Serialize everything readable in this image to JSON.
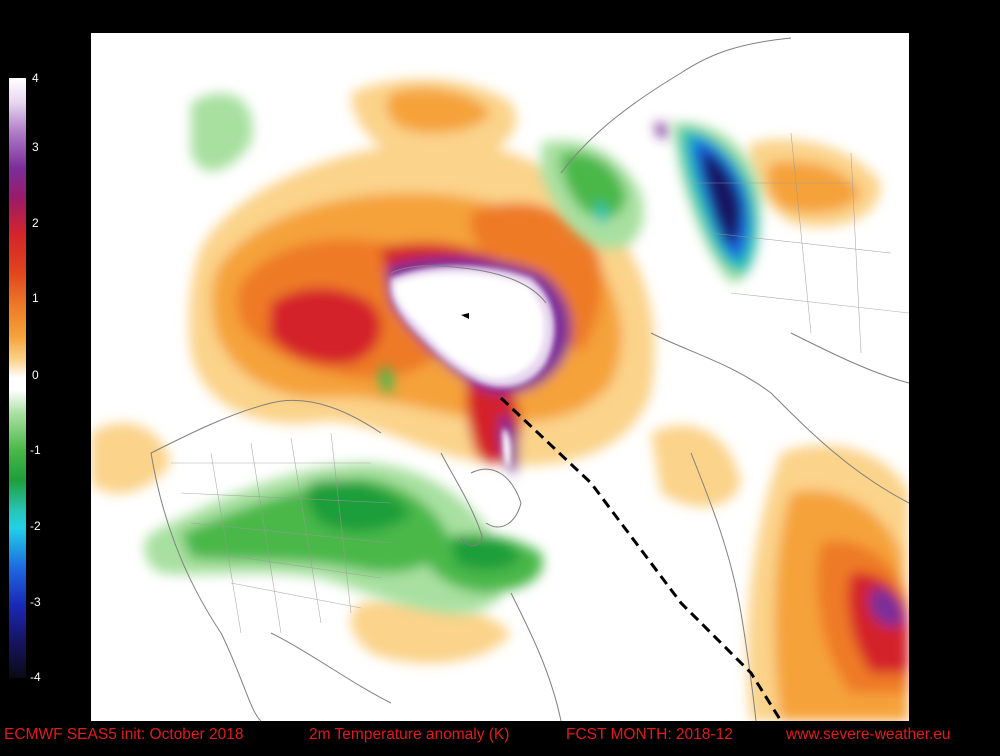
{
  "footer": {
    "model": "ECMWF SEAS5 init: October 2018",
    "variable": "2m Temperature anomaly (K)",
    "forecast": "FCST MONTH: 2018-12",
    "website": "www.severe-weather.eu"
  },
  "colorbar": {
    "ticks": [
      "4",
      "3",
      "2",
      "1",
      "0",
      "-1",
      "-2",
      "-3",
      "-4"
    ],
    "min": -4,
    "max": 4,
    "colors": {
      "plus_4": "#ffffff",
      "plus_3": "#7a2e9a",
      "plus_2": "#d4242a",
      "plus_1": "#f5a23a",
      "zero": "#ffffff",
      "minus_1": "#1f9e3a",
      "minus_2": "#22d0e8",
      "minus_3": "#1a28b4",
      "minus_4": "#0a0a14"
    }
  },
  "map": {
    "background": "#ffffff",
    "coastline_color": "#808080"
  }
}
